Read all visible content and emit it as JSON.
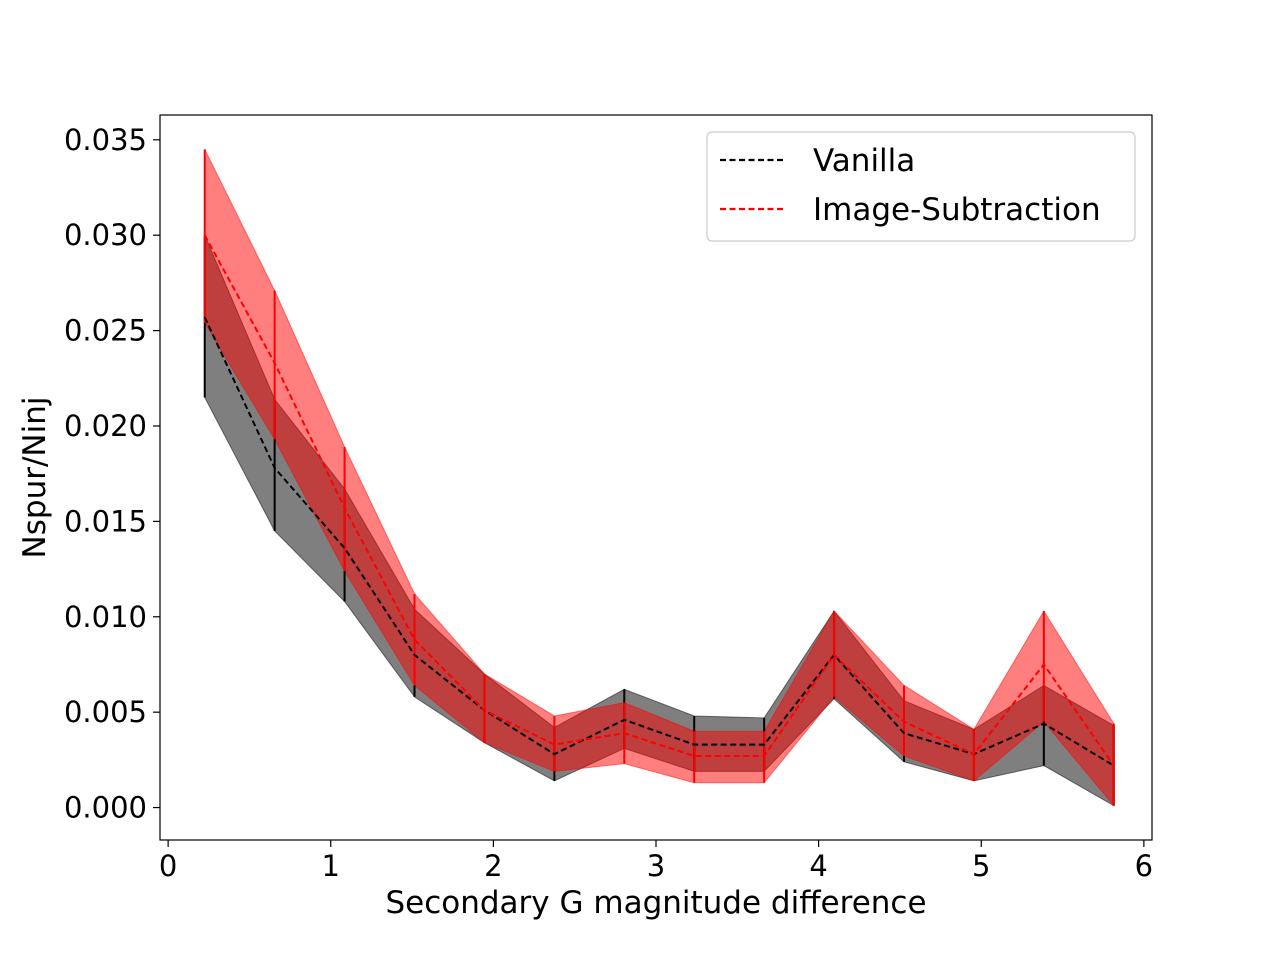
{
  "chart_data": {
    "type": "line",
    "title": "",
    "xlabel": "Secondary G magnitude difference",
    "ylabel": "Nspur/Ninj",
    "xlim": [
      -0.05,
      6.05
    ],
    "ylim": [
      -0.0017,
      0.0363
    ],
    "xticks": [
      0,
      1,
      2,
      3,
      4,
      5,
      6
    ],
    "xtick_labels": [
      "0",
      "1",
      "2",
      "3",
      "4",
      "5",
      "6"
    ],
    "yticks": [
      0.0,
      0.005,
      0.01,
      0.015,
      0.02,
      0.025,
      0.03,
      0.035
    ],
    "ytick_labels": [
      "0.000",
      "0.005",
      "0.010",
      "0.015",
      "0.020",
      "0.025",
      "0.030",
      "0.035"
    ],
    "grid": false,
    "legend_position": "top-right",
    "x": [
      0.225,
      0.655,
      1.085,
      1.515,
      1.945,
      2.375,
      2.805,
      3.235,
      3.665,
      4.095,
      4.525,
      4.955,
      5.385,
      5.815
    ],
    "series": [
      {
        "name": "Vanilla",
        "color": "#000000",
        "fill_color": "#000000",
        "fill_opacity": 0.5,
        "line_style": "dashed",
        "values": [
          0.0257,
          0.0178,
          0.0136,
          0.008,
          0.0051,
          0.0028,
          0.0046,
          0.0033,
          0.0033,
          0.008,
          0.0039,
          0.0028,
          0.0044,
          0.0022
        ],
        "upper": [
          0.03,
          0.0214,
          0.0167,
          0.0104,
          0.007,
          0.0042,
          0.0062,
          0.0048,
          0.0047,
          0.0103,
          0.0056,
          0.0041,
          0.0064,
          0.0043
        ],
        "lower": [
          0.0215,
          0.0145,
          0.0108,
          0.0058,
          0.0034,
          0.0014,
          0.0031,
          0.0019,
          0.0019,
          0.0057,
          0.0024,
          0.0014,
          0.0022,
          0.0001
        ]
      },
      {
        "name": "Image-Subtraction",
        "color": "#ff0000",
        "fill_color": "#ff0000",
        "fill_opacity": 0.5,
        "line_style": "dashed",
        "values": [
          0.03,
          0.0233,
          0.0157,
          0.0088,
          0.0051,
          0.0033,
          0.0039,
          0.0027,
          0.0027,
          0.008,
          0.0045,
          0.0028,
          0.0075,
          0.0022
        ],
        "upper": [
          0.0345,
          0.0271,
          0.0189,
          0.0112,
          0.007,
          0.0048,
          0.0055,
          0.004,
          0.004,
          0.0103,
          0.0064,
          0.0041,
          0.0103,
          0.0044
        ],
        "lower": [
          0.0254,
          0.0193,
          0.0124,
          0.0064,
          0.0034,
          0.0019,
          0.0023,
          0.0013,
          0.0013,
          0.0058,
          0.0027,
          0.0014,
          0.0045,
          0.0001
        ]
      }
    ]
  }
}
